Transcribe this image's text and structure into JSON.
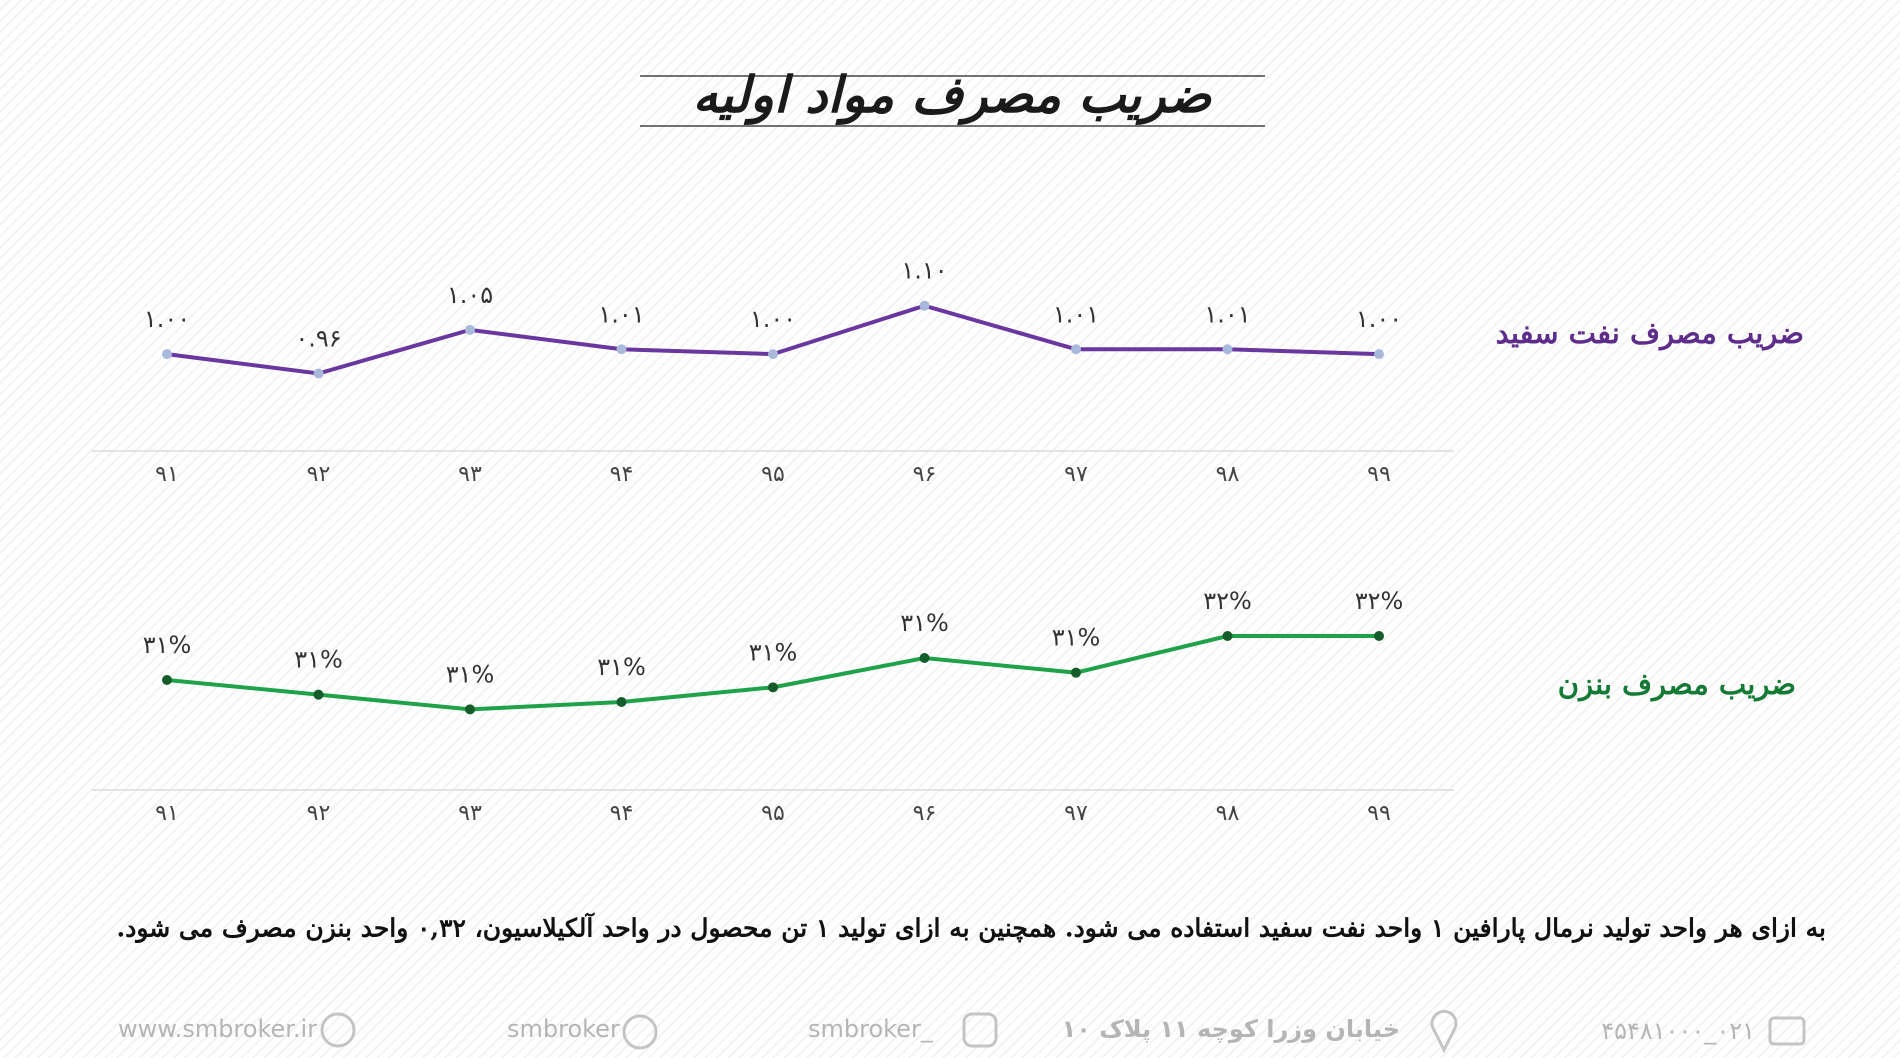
{
  "header": {
    "title": "ضریب مصرف مواد اولیه"
  },
  "chart_data": [
    {
      "type": "line",
      "title": "ضریب مصرف نفت سفید",
      "categories": [
        "۹۱",
        "۹۲",
        "۹۳",
        "۹۴",
        "۹۵",
        "۹۶",
        "۹۷",
        "۹۸",
        "۹۹"
      ],
      "series": [
        {
          "color": "#6a36a0",
          "marker_color": "#a9b9dc",
          "values": [
            1.0,
            0.96,
            1.05,
            1.01,
            1.0,
            1.1,
            1.01,
            1.01,
            1.0
          ],
          "value_labels": [
            "۱.۰۰",
            "۰.۹۶",
            "۱.۰۵",
            "۱.۰۱",
            "۱.۰۰",
            "۱.۱۰",
            "۱.۰۱",
            "۱.۰۱",
            "۱.۰۰"
          ]
        }
      ],
      "ylim": [
        0.8,
        1.25
      ],
      "title_color": "#5e2d8c"
    },
    {
      "type": "line",
      "title": "ضریب مصرف بنزن",
      "categories": [
        "۹۱",
        "۹۲",
        "۹۳",
        "۹۴",
        "۹۵",
        "۹۶",
        "۹۷",
        "۹۸",
        "۹۹"
      ],
      "series": [
        {
          "color": "#1fa24a",
          "marker_color": "#145c2a",
          "values": [
            31.0,
            30.8,
            30.6,
            30.7,
            30.9,
            31.3,
            31.1,
            31.6,
            31.6
          ],
          "value_labels": [
            "۳۱%",
            "۳۱%",
            "۳۱%",
            "۳۱%",
            "۳۱%",
            "۳۱%",
            "۳۱%",
            "۳۲%",
            "۳۲%"
          ]
        }
      ],
      "ylim": [
        29.5,
        32.5
      ],
      "title_color": "#157a35"
    }
  ],
  "note": "به ازای هر واحد تولید نرمال پارافین ۱ واحد نفت سفید استفاده می شود. همچنین به ازای تولید ۱ تن محصول در واحد آلکیلاسیون، ۰,۳۲ واحد بنزن مصرف می شود.",
  "footer": [
    "www.smbroker.ir",
    "smbroker",
    "smbroker_",
    "خیابان وزرا کوچه ۱۱ پلاک ۱۰",
    "۰۲۱_۴۵۴۸۱۰۰۰"
  ]
}
